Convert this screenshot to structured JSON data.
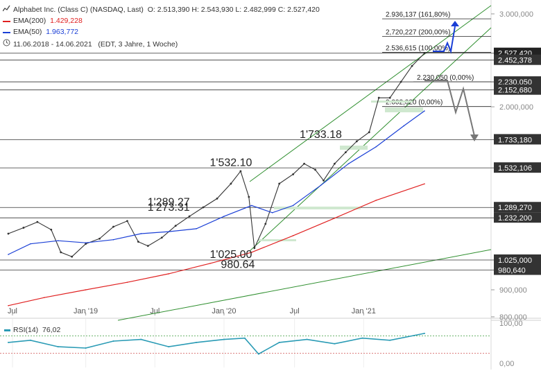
{
  "header": {
    "symbol_icon": "line-chart-icon",
    "title": "Alphabet Inc. (Class C) (NASDAQ, Last)",
    "ohlc": "O: 2.513,390  H: 2.543,930  L: 2.482,999  C: 2.527,420",
    "ema200_label": "EMA(200)",
    "ema200_value": "1.429,228",
    "ema50_label": "EMA(50)",
    "ema50_value": "1.963,772",
    "period_icon": "clock-icon",
    "period": "11.06.2018 - 14.06.2021",
    "period_note": "(EDT, 3 Jahre, 1 Woche)",
    "colors": {
      "ema200": "#e02020",
      "ema50": "#1a3fd6"
    }
  },
  "rsi": {
    "label": "RSI(14)",
    "value": "76,02",
    "color": "#2a9bb5",
    "axis_labels": [
      "100,00",
      "0,00"
    ]
  },
  "chart_data": {
    "type": "line",
    "title": "Alphabet Inc. (Class C)",
    "xlabel": "",
    "ylabel": "",
    "x_tick_labels": [
      "Jul",
      "Jan '19",
      "Jul",
      "Jan '20",
      "Jul",
      "Jan '21"
    ],
    "y_tick_labels": [
      "3.000,000",
      "2.000,000",
      "900,000",
      "800,000"
    ],
    "ylim": [
      780,
      3100
    ],
    "grid": false,
    "series": [
      {
        "name": "Alphabet Inc. (Class C)",
        "color": "#333333",
        "x": [
          2018.44,
          2018.55,
          2018.65,
          2018.75,
          2018.82,
          2018.9,
          2019.0,
          2019.1,
          2019.2,
          2019.3,
          2019.38,
          2019.45,
          2019.55,
          2019.65,
          2019.75,
          2019.85,
          2019.95,
          2020.05,
          2020.12,
          2020.18,
          2020.22,
          2020.3,
          2020.4,
          2020.5,
          2020.58,
          2020.66,
          2020.72,
          2020.8,
          2020.88,
          2020.96,
          2021.05,
          2021.12,
          2021.2,
          2021.28,
          2021.36,
          2021.45
        ],
        "values": [
          1150,
          1180,
          1210,
          1170,
          1060,
          1040,
          1100,
          1125,
          1185,
          1215,
          1110,
          1090,
          1130,
          1190,
          1240,
          1290,
          1340,
          1430,
          1510,
          1350,
          1080,
          1200,
          1430,
          1490,
          1560,
          1520,
          1450,
          1560,
          1640,
          1720,
          1790,
          2080,
          2080,
          2230,
          2390,
          2527
        ]
      },
      {
        "name": "EMA(200)",
        "color": "#e02020",
        "x": [
          2018.44,
          2018.7,
          2019.0,
          2019.3,
          2019.6,
          2019.9,
          2020.2,
          2020.5,
          2020.8,
          2021.1,
          2021.45
        ],
        "values": [
          840,
          870,
          900,
          930,
          965,
          1010,
          1060,
          1140,
          1230,
          1330,
          1429
        ]
      },
      {
        "name": "EMA(50)",
        "color": "#1a3fd6",
        "x": [
          2018.44,
          2018.6,
          2018.8,
          2019.0,
          2019.2,
          2019.4,
          2019.6,
          2019.8,
          2020.0,
          2020.2,
          2020.35,
          2020.5,
          2020.7,
          2020.9,
          2021.1,
          2021.3,
          2021.45
        ],
        "values": [
          1050,
          1100,
          1115,
          1105,
          1120,
          1150,
          1160,
          1175,
          1240,
          1300,
          1260,
          1300,
          1420,
          1560,
          1680,
          1840,
          1964
        ]
      },
      {
        "name": "RSI(14)",
        "color": "#2a9bb5",
        "ylim": [
          0,
          100
        ],
        "x": [
          2018.44,
          2018.6,
          2018.8,
          2019.0,
          2019.2,
          2019.4,
          2019.6,
          2019.8,
          2020.0,
          2020.15,
          2020.25,
          2020.4,
          2020.6,
          2020.8,
          2021.0,
          2021.2,
          2021.45
        ],
        "values": [
          55,
          60,
          45,
          42,
          58,
          62,
          45,
          55,
          62,
          65,
          28,
          55,
          62,
          52,
          65,
          60,
          76
        ]
      }
    ],
    "levels": [
      {
        "label": "2.936,137 (161,80%)",
        "value": 2936
      },
      {
        "label": "2,720,227 (200,00%)",
        "value": 2720
      },
      {
        "label": "2.536,615 (100,00%)",
        "value": 2537
      },
      {
        "label": "2.527,420",
        "value": 2527
      },
      {
        "label": "2.452,378",
        "value": 2452
      },
      {
        "label": "2.230,050 (0,00%)",
        "value": 2230
      },
      {
        "label": "2.230,050",
        "value": 2230
      },
      {
        "label": "2.152,680",
        "value": 2153
      },
      {
        "label": "2.002,020 (0,00%)",
        "value": 2002
      },
      {
        "label": "1.733,180",
        "value": 1733
      },
      {
        "label": "1.532,106",
        "value": 1532
      },
      {
        "label": "1.289,270",
        "value": 1289
      },
      {
        "label": "1.232,200",
        "value": 1232
      },
      {
        "label": "1.025,000",
        "value": 1025
      },
      {
        "label": "980,640",
        "value": 981
      }
    ],
    "annotations": [
      {
        "text": "1'733.18",
        "x": 2020.7,
        "y": 1745
      },
      {
        "text": "1'532.10",
        "x": 2020.05,
        "y": 1545
      },
      {
        "text": "1'289.27",
        "x": 2019.6,
        "y": 1300
      },
      {
        "text": "1'273.31",
        "x": 2019.6,
        "y": 1270
      },
      {
        "text": "1'025.00",
        "x": 2020.05,
        "y": 1035
      },
      {
        "text": "980.64",
        "x": 2020.1,
        "y": 990
      }
    ]
  }
}
